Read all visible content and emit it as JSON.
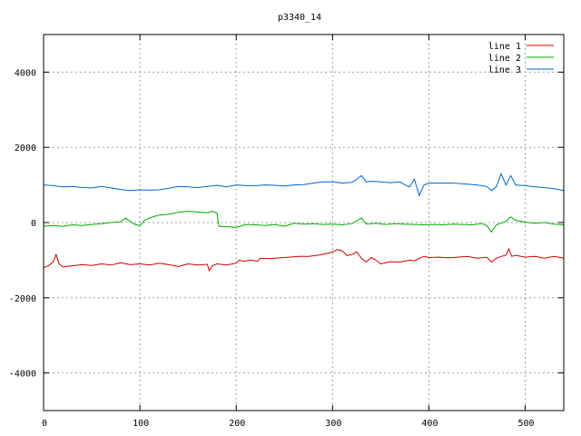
{
  "chart_data": {
    "type": "line",
    "title": "p3340_14",
    "xlabel": "",
    "ylabel": "",
    "xlim": [
      0,
      540
    ],
    "ylim": [
      -5000,
      5000
    ],
    "x_ticks": [
      0,
      100,
      200,
      300,
      400,
      500
    ],
    "y_ticks": [
      -4000,
      -2000,
      0,
      2000,
      4000
    ],
    "grid": true,
    "legend_position": "top-right",
    "series": [
      {
        "name": "line 1",
        "color": "#cc0000",
        "points": [
          [
            0,
            -1200
          ],
          [
            5,
            -1150
          ],
          [
            10,
            -1050
          ],
          [
            13,
            -850
          ],
          [
            16,
            -1100
          ],
          [
            20,
            -1180
          ],
          [
            30,
            -1150
          ],
          [
            40,
            -1120
          ],
          [
            50,
            -1140
          ],
          [
            60,
            -1100
          ],
          [
            70,
            -1130
          ],
          [
            80,
            -1070
          ],
          [
            90,
            -1120
          ],
          [
            100,
            -1100
          ],
          [
            110,
            -1130
          ],
          [
            120,
            -1080
          ],
          [
            130,
            -1120
          ],
          [
            140,
            -1170
          ],
          [
            150,
            -1100
          ],
          [
            160,
            -1130
          ],
          [
            170,
            -1110
          ],
          [
            172,
            -1280
          ],
          [
            175,
            -1150
          ],
          [
            180,
            -1100
          ],
          [
            190,
            -1130
          ],
          [
            200,
            -1080
          ],
          [
            203,
            -1000
          ],
          [
            208,
            -1030
          ],
          [
            215,
            -1000
          ],
          [
            222,
            -1030
          ],
          [
            225,
            -950
          ],
          [
            235,
            -960
          ],
          [
            245,
            -940
          ],
          [
            255,
            -920
          ],
          [
            265,
            -900
          ],
          [
            275,
            -900
          ],
          [
            285,
            -870
          ],
          [
            295,
            -820
          ],
          [
            300,
            -780
          ],
          [
            305,
            -720
          ],
          [
            310,
            -750
          ],
          [
            315,
            -880
          ],
          [
            320,
            -850
          ],
          [
            325,
            -780
          ],
          [
            330,
            -950
          ],
          [
            335,
            -1050
          ],
          [
            340,
            -930
          ],
          [
            345,
            -1000
          ],
          [
            350,
            -1100
          ],
          [
            360,
            -1040
          ],
          [
            370,
            -1050
          ],
          [
            380,
            -1000
          ],
          [
            385,
            -1020
          ],
          [
            390,
            -950
          ],
          [
            395,
            -900
          ],
          [
            400,
            -930
          ],
          [
            410,
            -920
          ],
          [
            420,
            -940
          ],
          [
            430,
            -920
          ],
          [
            440,
            -900
          ],
          [
            450,
            -950
          ],
          [
            460,
            -920
          ],
          [
            465,
            -1050
          ],
          [
            470,
            -950
          ],
          [
            475,
            -900
          ],
          [
            480,
            -870
          ],
          [
            483,
            -700
          ],
          [
            486,
            -900
          ],
          [
            490,
            -870
          ],
          [
            500,
            -920
          ],
          [
            510,
            -900
          ],
          [
            520,
            -950
          ],
          [
            530,
            -900
          ],
          [
            540,
            -950
          ]
        ]
      },
      {
        "name": "line 2",
        "color": "#00aa00",
        "points": [
          [
            0,
            -100
          ],
          [
            10,
            -80
          ],
          [
            20,
            -100
          ],
          [
            30,
            -60
          ],
          [
            40,
            -80
          ],
          [
            50,
            -50
          ],
          [
            60,
            -30
          ],
          [
            70,
            0
          ],
          [
            80,
            20
          ],
          [
            85,
            120
          ],
          [
            90,
            30
          ],
          [
            95,
            -50
          ],
          [
            100,
            -80
          ],
          [
            105,
            60
          ],
          [
            110,
            120
          ],
          [
            120,
            200
          ],
          [
            130,
            220
          ],
          [
            140,
            270
          ],
          [
            150,
            300
          ],
          [
            160,
            280
          ],
          [
            170,
            260
          ],
          [
            175,
            300
          ],
          [
            180,
            250
          ],
          [
            182,
            -100
          ],
          [
            190,
            -110
          ],
          [
            200,
            -130
          ],
          [
            210,
            -50
          ],
          [
            220,
            -60
          ],
          [
            230,
            -80
          ],
          [
            240,
            -50
          ],
          [
            250,
            -100
          ],
          [
            260,
            -20
          ],
          [
            270,
            -40
          ],
          [
            280,
            -30
          ],
          [
            290,
            -50
          ],
          [
            300,
            -40
          ],
          [
            310,
            -60
          ],
          [
            320,
            -30
          ],
          [
            330,
            120
          ],
          [
            335,
            -40
          ],
          [
            345,
            -20
          ],
          [
            355,
            -50
          ],
          [
            365,
            -30
          ],
          [
            375,
            -40
          ],
          [
            385,
            -50
          ],
          [
            395,
            -60
          ],
          [
            405,
            -50
          ],
          [
            415,
            -60
          ],
          [
            425,
            -40
          ],
          [
            435,
            -50
          ],
          [
            445,
            -60
          ],
          [
            455,
            -30
          ],
          [
            460,
            -80
          ],
          [
            465,
            -250
          ],
          [
            470,
            -60
          ],
          [
            480,
            30
          ],
          [
            485,
            150
          ],
          [
            490,
            60
          ],
          [
            500,
            10
          ],
          [
            510,
            -20
          ],
          [
            520,
            0
          ],
          [
            530,
            -40
          ],
          [
            540,
            -60
          ]
        ]
      },
      {
        "name": "line 3",
        "color": "#0066cc",
        "points": [
          [
            0,
            1000
          ],
          [
            10,
            980
          ],
          [
            20,
            950
          ],
          [
            30,
            960
          ],
          [
            40,
            930
          ],
          [
            50,
            920
          ],
          [
            60,
            960
          ],
          [
            70,
            920
          ],
          [
            80,
            880
          ],
          [
            90,
            850
          ],
          [
            100,
            870
          ],
          [
            110,
            860
          ],
          [
            120,
            870
          ],
          [
            130,
            910
          ],
          [
            140,
            960
          ],
          [
            150,
            950
          ],
          [
            160,
            930
          ],
          [
            170,
            960
          ],
          [
            180,
            990
          ],
          [
            190,
            950
          ],
          [
            200,
            1000
          ],
          [
            210,
            980
          ],
          [
            220,
            980
          ],
          [
            230,
            1000
          ],
          [
            240,
            990
          ],
          [
            250,
            970
          ],
          [
            260,
            1000
          ],
          [
            270,
            1010
          ],
          [
            280,
            1050
          ],
          [
            290,
            1080
          ],
          [
            300,
            1080
          ],
          [
            310,
            1050
          ],
          [
            320,
            1070
          ],
          [
            325,
            1150
          ],
          [
            330,
            1250
          ],
          [
            335,
            1080
          ],
          [
            340,
            1100
          ],
          [
            350,
            1080
          ],
          [
            360,
            1060
          ],
          [
            370,
            1080
          ],
          [
            375,
            1000
          ],
          [
            380,
            950
          ],
          [
            385,
            1150
          ],
          [
            390,
            720
          ],
          [
            395,
            1000
          ],
          [
            400,
            1050
          ],
          [
            410,
            1050
          ],
          [
            420,
            1050
          ],
          [
            430,
            1040
          ],
          [
            440,
            1020
          ],
          [
            450,
            1000
          ],
          [
            460,
            960
          ],
          [
            465,
            850
          ],
          [
            470,
            950
          ],
          [
            475,
            1300
          ],
          [
            480,
            1000
          ],
          [
            485,
            1250
          ],
          [
            490,
            1000
          ],
          [
            500,
            980
          ],
          [
            510,
            950
          ],
          [
            520,
            930
          ],
          [
            530,
            900
          ],
          [
            540,
            850
          ]
        ]
      }
    ]
  }
}
